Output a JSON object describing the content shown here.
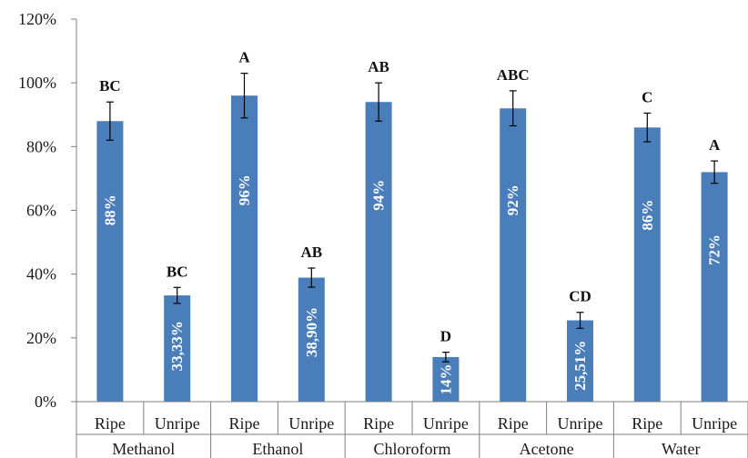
{
  "chart_data": {
    "type": "bar",
    "title": "",
    "xlabel": "",
    "ylabel": "",
    "ylim": [
      0,
      120
    ],
    "yticks": [
      "0%",
      "20%",
      "40%",
      "60%",
      "80%",
      "100%",
      "120%"
    ],
    "grid": false,
    "legend": "none",
    "colors": {
      "bar": "#4a7ebb",
      "axis": "#7f7f7f",
      "error": "#000000"
    },
    "groups": [
      "Methanol",
      "Ethanol",
      "Chloroform",
      "Acetone",
      "Water"
    ],
    "categories": [
      "Ripe",
      "Unripe",
      "Ripe",
      "Unripe",
      "Ripe",
      "Unripe",
      "Ripe",
      "Unripe",
      "Ripe",
      "Unripe"
    ],
    "values": [
      88,
      33.33,
      96,
      38.9,
      94,
      14,
      92,
      25.51,
      86,
      72
    ],
    "value_labels": [
      "88%",
      "33,33%",
      "96%",
      "38,90%",
      "94%",
      "14%",
      "92%",
      "25,51%",
      "86%",
      "72%"
    ],
    "errors": [
      6,
      2.5,
      7,
      3,
      6,
      1.5,
      5.5,
      2.5,
      4.5,
      3.5
    ],
    "significance": [
      "BC",
      "BC",
      "A",
      "AB",
      "AB",
      "D",
      "ABC",
      "CD",
      "C",
      "A"
    ]
  }
}
